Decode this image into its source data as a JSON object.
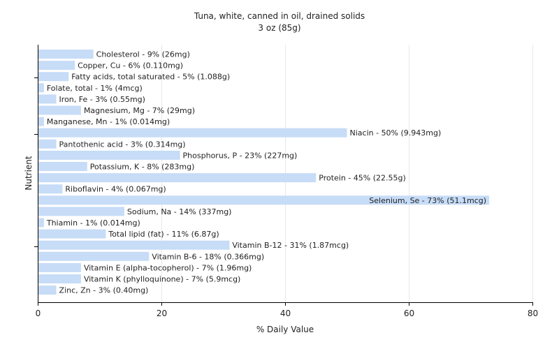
{
  "chart_data": {
    "type": "bar",
    "orientation": "horizontal",
    "title": "Tuna, white, canned in oil, drained solids",
    "subtitle": "3 oz (85g)",
    "xlabel": "% Daily Value",
    "ylabel": "Nutrient",
    "xlim": [
      0,
      80
    ],
    "xticks": [
      "0",
      "20",
      "40",
      "60",
      "80"
    ],
    "grid": true,
    "legend": "none",
    "bar_color": "#c6dcf7",
    "categories": [
      "Cholesterol",
      "Copper, Cu",
      "Fatty acids, total saturated",
      "Folate, total",
      "Iron, Fe",
      "Magnesium, Mg",
      "Manganese, Mn",
      "Niacin",
      "Pantothenic acid",
      "Phosphorus, P",
      "Potassium, K",
      "Protein",
      "Riboflavin",
      "Selenium, Se",
      "Sodium, Na",
      "Thiamin",
      "Total lipid (fat)",
      "Vitamin B-12",
      "Vitamin B-6",
      "Vitamin E (alpha-tocopherol)",
      "Vitamin K (phylloquinone)",
      "Zinc, Zn"
    ],
    "values": [
      9,
      6,
      5,
      1,
      3,
      7,
      1,
      50,
      3,
      23,
      8,
      45,
      4,
      73,
      14,
      1,
      11,
      31,
      18,
      7,
      7,
      3
    ],
    "labels": [
      "Cholesterol - 9% (26mg)",
      "Copper, Cu - 6% (0.110mg)",
      "Fatty acids, total saturated - 5% (1.088g)",
      "Folate, total - 1% (4mcg)",
      "Iron, Fe - 3% (0.55mg)",
      "Magnesium, Mg - 7% (29mg)",
      "Manganese, Mn - 1% (0.014mg)",
      "Niacin - 50% (9.943mg)",
      "Pantothenic acid - 3% (0.314mg)",
      "Phosphorus, P - 23% (227mg)",
      "Potassium, K - 8% (283mg)",
      "Protein - 45% (22.55g)",
      "Riboflavin - 4% (0.067mg)",
      "Selenium, Se - 73% (51.1mcg)",
      "Sodium, Na - 14% (337mg)",
      "Thiamin - 1% (0.014mg)",
      "Total lipid (fat) - 11% (6.87g)",
      "Vitamin B-12 - 31% (1.87mcg)",
      "Vitamin B-6 - 18% (0.366mg)",
      "Vitamin E (alpha-tocopherol) - 7% (1.96mg)",
      "Vitamin K (phylloquinone) - 7% (5.9mcg)",
      "Zinc, Zn - 3% (0.40mg)"
    ]
  }
}
